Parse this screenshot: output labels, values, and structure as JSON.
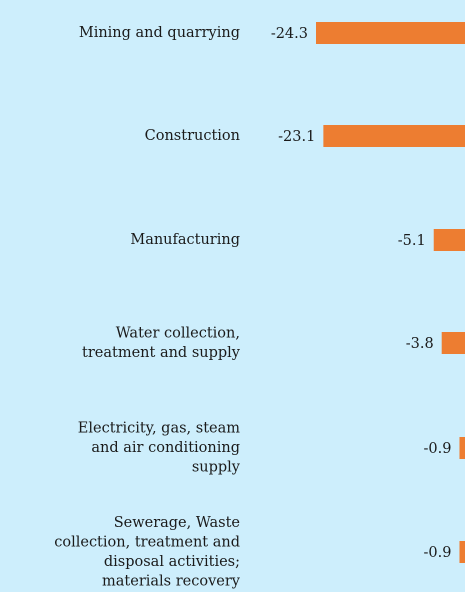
{
  "chart_data": {
    "type": "bar",
    "orientation": "horizontal",
    "categories": [
      "Mining and quarrying",
      "Construction",
      "Manufacturing",
      "Water collection,\ntreatment and supply",
      "Electricity, gas, steam\nand air conditioning\nsupply",
      "Sewerage, Waste\ncollection, treatment and\ndisposal activities;\nmaterials recovery"
    ],
    "values": [
      -24.3,
      -23.1,
      -5.1,
      -3.8,
      -0.9,
      -0.9
    ],
    "color": "#ed7d31"
  }
}
